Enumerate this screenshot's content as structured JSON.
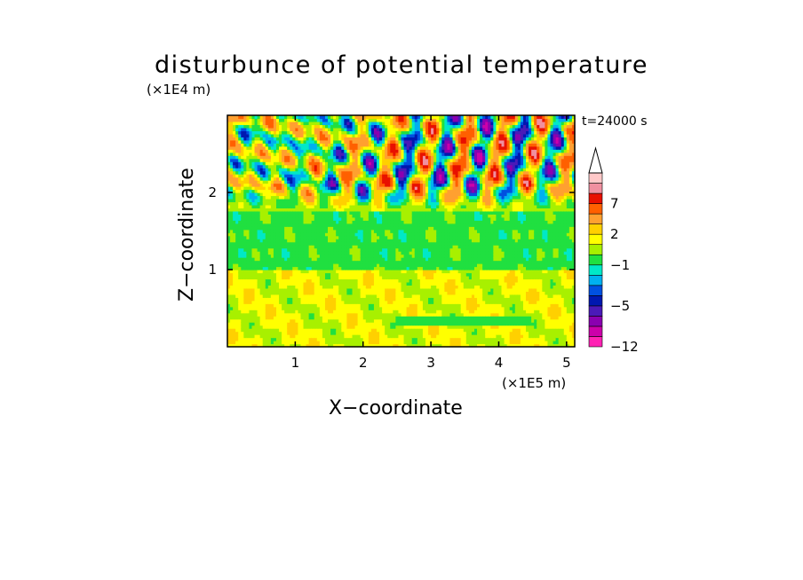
{
  "chart_data": {
    "type": "heatmap",
    "title": "disturbunce of potential temperature",
    "xlabel": "X−coordinate",
    "ylabel": "Z−coordinate",
    "x_unit": "(×1E5 m)",
    "y_unit": "(×1E4 m)",
    "time_label": "t=24000 s",
    "xlim": [
      0,
      5.12
    ],
    "ylim": [
      0,
      3.0
    ],
    "x_ticks": [
      1,
      2,
      3,
      4,
      5
    ],
    "y_ticks": [
      1,
      2
    ],
    "colorbar": {
      "levels": [
        -12,
        -10,
        -8,
        -6,
        -5,
        -4,
        -3,
        -2,
        -1,
        0,
        1,
        2,
        3,
        5,
        7,
        9,
        11
      ],
      "labels": [
        -12,
        -5,
        -1,
        2,
        7
      ],
      "colors": [
        "#ff22b4",
        "#cc00aa",
        "#8a00b0",
        "#4a1ab8",
        "#0018b0",
        "#0050e0",
        "#00b0f0",
        "#00e8c8",
        "#20e040",
        "#a8f000",
        "#ffff00",
        "#ffd000",
        "#ffa030",
        "#ff6000",
        "#e81000",
        "#f090a0",
        "#ffc8c8"
      ],
      "extend": "max"
    },
    "field_description": "Upper layer (z > 1.8) strong wave-like positive/negative anomalies; mid layer (1.0-1.8) near zero; lower layer (< 1.0) mostly weak positive disturbances"
  }
}
